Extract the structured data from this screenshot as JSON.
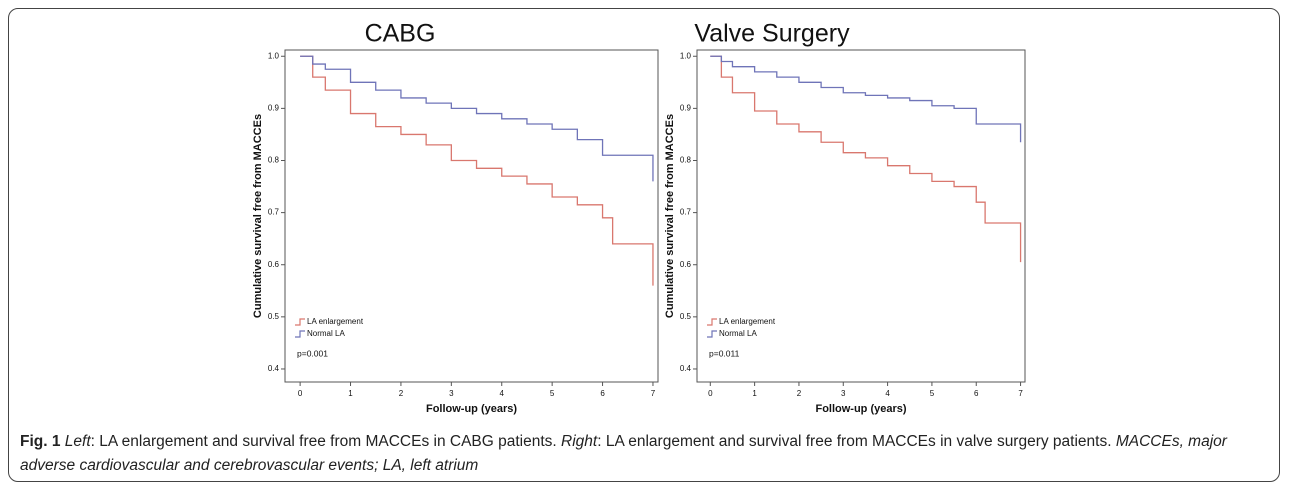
{
  "chart_data": [
    {
      "type": "step",
      "title": "CABG",
      "x_label": "Follow-up (years)",
      "y_label": "Cumulative survival free from MACCEs",
      "x": [
        0,
        0.25,
        0.5,
        1,
        1.5,
        2,
        2.5,
        3,
        3.5,
        4,
        4.5,
        5,
        5.5,
        6,
        6.2,
        6.9,
        7
      ],
      "series": [
        {
          "name": "LA enlargement",
          "color": "#d9776e",
          "values": [
            1.0,
            0.96,
            0.935,
            0.89,
            0.865,
            0.85,
            0.83,
            0.8,
            0.785,
            0.77,
            0.755,
            0.73,
            0.715,
            0.69,
            0.64,
            0.64,
            0.56
          ]
        },
        {
          "name": "Normal LA",
          "color": "#6f74b8",
          "values": [
            1.0,
            0.985,
            0.975,
            0.95,
            0.935,
            0.92,
            0.91,
            0.9,
            0.89,
            0.88,
            0.87,
            0.86,
            0.84,
            0.81,
            0.81,
            0.81,
            0.76
          ]
        }
      ],
      "annotation": "p=0.001",
      "xlim": [
        -0.3,
        7.1
      ],
      "xticks": [
        0,
        1,
        2,
        3,
        4,
        5,
        6,
        7
      ],
      "ylim": [
        0.375,
        1.012
      ],
      "yticks": [
        0.4,
        0.5,
        0.6,
        0.7,
        0.8,
        0.9,
        {
          "value": 1,
          "label": "1.0"
        }
      ],
      "legend": "lower left"
    },
    {
      "type": "step",
      "title": "Valve Surgery",
      "x_label": "Follow-up (years)",
      "y_label": "Cumulative survival free from MACCEs",
      "x": [
        0,
        0.25,
        0.5,
        1,
        1.5,
        2,
        2.5,
        3,
        3.5,
        4,
        4.5,
        5,
        5.5,
        6,
        6.2,
        6.9,
        7
      ],
      "series": [
        {
          "name": "LA enlargement",
          "color": "#d9776e",
          "values": [
            1.0,
            0.96,
            0.93,
            0.895,
            0.87,
            0.855,
            0.835,
            0.815,
            0.805,
            0.79,
            0.775,
            0.76,
            0.75,
            0.72,
            0.68,
            0.68,
            0.605
          ]
        },
        {
          "name": "Normal LA",
          "color": "#6f74b8",
          "values": [
            1.0,
            0.99,
            0.98,
            0.97,
            0.96,
            0.95,
            0.94,
            0.93,
            0.925,
            0.92,
            0.915,
            0.905,
            0.9,
            0.87,
            0.87,
            0.87,
            0.835
          ]
        }
      ],
      "annotation": "p=0.011",
      "xlim": [
        -0.3,
        7.1
      ],
      "xticks": [
        0,
        1,
        2,
        3,
        4,
        5,
        6,
        7
      ],
      "ylim": [
        0.375,
        1.012
      ],
      "yticks": [
        0.4,
        0.5,
        0.6,
        0.7,
        0.8,
        0.9,
        {
          "value": 1,
          "label": "1.0"
        }
      ],
      "legend": "lower left"
    }
  ],
  "caption": {
    "label": "Fig. 1",
    "left_word": "Left",
    "left_text": ": LA enlargement and survival free from MACCEs in CABG patients. ",
    "right_word": "Right",
    "right_text": ": LA enlargement and survival free from MACCEs in valve surgery patients. ",
    "abbreviations": "MACCEs, major adverse cardiovascular and cerebrovascular events; LA, left atrium"
  }
}
